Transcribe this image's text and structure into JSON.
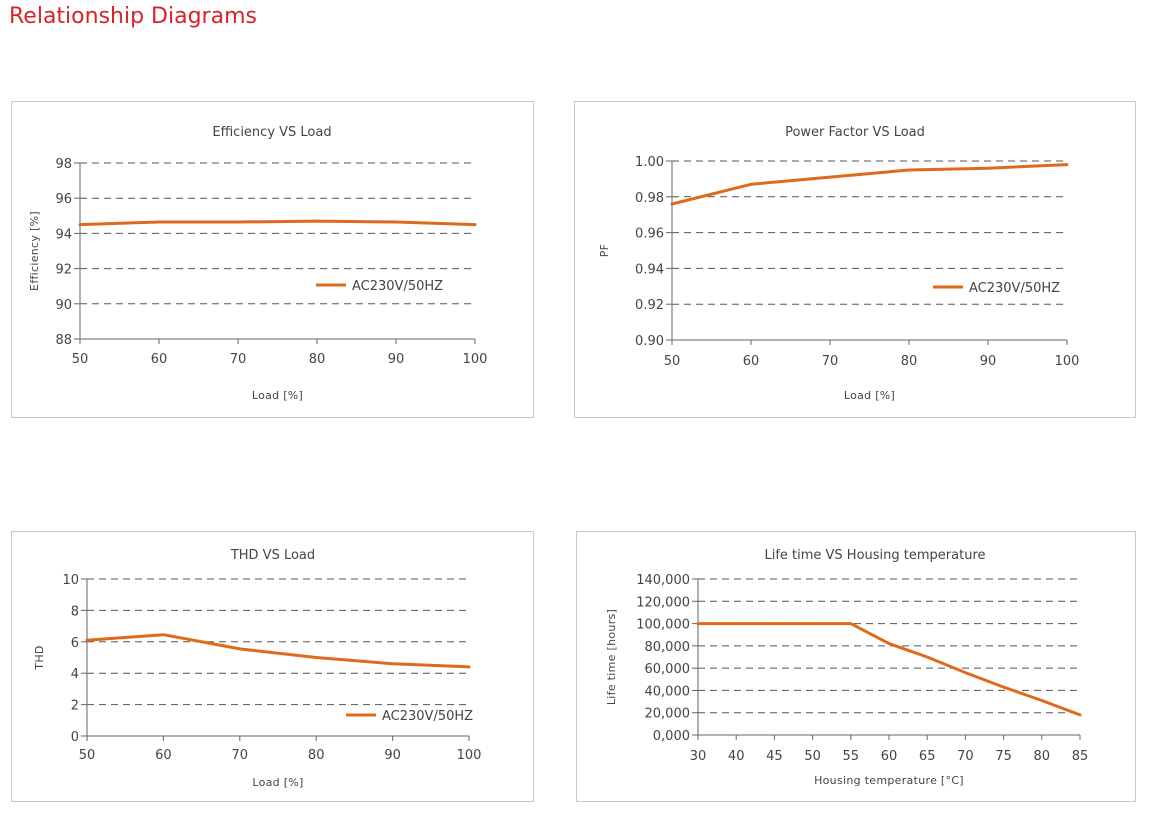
{
  "page": {
    "title": "Relationship Diagrams"
  },
  "colors": {
    "title": "#d6242a",
    "series": "#e06a1b",
    "grid": "#555555",
    "border": "#c9c9c9"
  },
  "chart_data": [
    {
      "type": "line",
      "title": "Efficiency VS Load",
      "xlabel": "Load [%]",
      "ylabel": "Efficiency [%]",
      "xlim": [
        50,
        100
      ],
      "ylim": [
        88,
        98
      ],
      "xticks": [
        50,
        60,
        70,
        80,
        90,
        100
      ],
      "yticks": [
        88,
        90,
        92,
        94,
        96,
        98
      ],
      "ytick_labels": [
        "88",
        "90",
        "92",
        "94",
        "96",
        "98"
      ],
      "grid": "dashed-horizontal",
      "legend_position": "center-right",
      "series": [
        {
          "name": "AC230V/50HZ",
          "x": [
            50,
            60,
            70,
            80,
            90,
            100
          ],
          "y": [
            94.5,
            94.65,
            94.65,
            94.7,
            94.65,
            94.5
          ]
        }
      ]
    },
    {
      "type": "line",
      "title": "Power Factor VS Load",
      "xlabel": "Load [%]",
      "ylabel": "PF",
      "xlim": [
        50,
        100
      ],
      "ylim": [
        0.9,
        1.0
      ],
      "xticks": [
        50,
        60,
        70,
        80,
        90,
        100
      ],
      "yticks": [
        0.9,
        0.92,
        0.94,
        0.96,
        0.98,
        1.0
      ],
      "ytick_labels": [
        "0.90",
        "0.92",
        "0.94",
        "0.96",
        "0.98",
        "1.00"
      ],
      "grid": "dashed-horizontal",
      "legend_position": "center-right",
      "series": [
        {
          "name": "AC230V/50HZ",
          "x": [
            50,
            60,
            70,
            80,
            90,
            100
          ],
          "y": [
            0.976,
            0.987,
            0.991,
            0.995,
            0.996,
            0.998
          ]
        }
      ]
    },
    {
      "type": "line",
      "title": "THD VS Load",
      "xlabel": "Load [%]",
      "ylabel": "THD",
      "xlim": [
        50,
        100
      ],
      "ylim": [
        0,
        10
      ],
      "xticks": [
        50,
        60,
        70,
        80,
        90,
        100
      ],
      "yticks": [
        0,
        2,
        4,
        6,
        8,
        10
      ],
      "ytick_labels": [
        "0",
        "2",
        "4",
        "6",
        "8",
        "10"
      ],
      "grid": "dashed-horizontal",
      "legend_position": "bottom-right",
      "series": [
        {
          "name": "AC230V/50HZ",
          "x": [
            50,
            60,
            70,
            80,
            90,
            100
          ],
          "y": [
            6.1,
            6.45,
            5.55,
            5.0,
            4.6,
            4.4
          ]
        }
      ]
    },
    {
      "type": "line",
      "title": "Life time VS Housing temperature",
      "xlabel": "Housing temperature [°C]",
      "ylabel": "Life time [hours]",
      "xlim": [
        30,
        85
      ],
      "ylim": [
        0,
        140000
      ],
      "xticks": [
        30,
        40,
        45,
        50,
        55,
        60,
        65,
        70,
        75,
        80,
        85
      ],
      "yticks": [
        0,
        20000,
        40000,
        60000,
        80000,
        100000,
        120000,
        140000
      ],
      "ytick_labels": [
        "0,000",
        "20,000",
        "40,000",
        "60,000",
        "80,000",
        "100,000",
        "120,000",
        "140,000"
      ],
      "xaxis_categorical": true,
      "grid": "dashed-horizontal",
      "series": [
        {
          "x": [
            30,
            40,
            45,
            50,
            55,
            60,
            65,
            70,
            75,
            80,
            85
          ],
          "y": [
            100000,
            100000,
            100000,
            100000,
            100000,
            82000,
            70000,
            56000,
            43000,
            31000,
            18000
          ]
        }
      ]
    }
  ]
}
